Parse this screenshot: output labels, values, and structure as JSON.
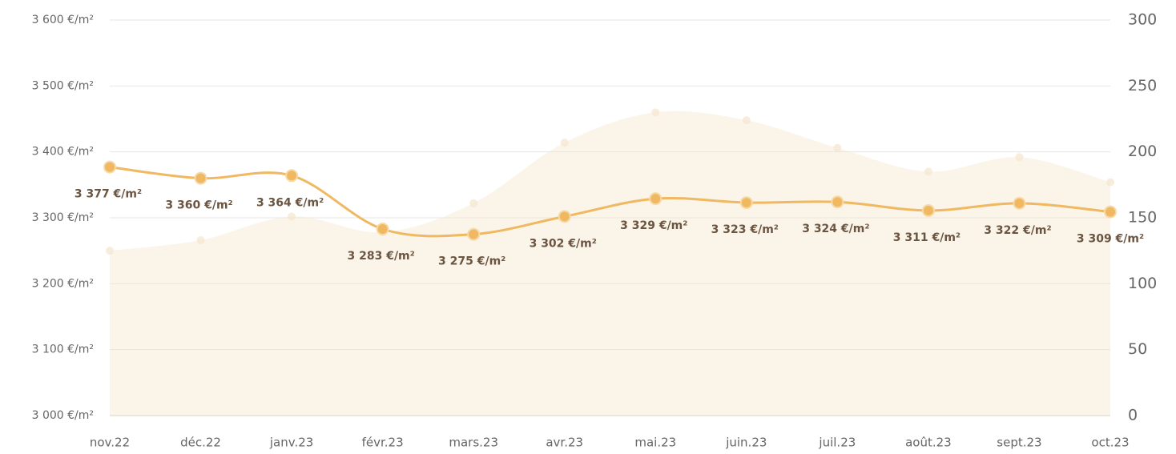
{
  "chart_data": {
    "type": "line",
    "categories": [
      "nov.22",
      "déc.22",
      "janv.23",
      "févr.23",
      "mars.23",
      "avr.23",
      "mai.23",
      "juin.23",
      "juil.23",
      "août.23",
      "sept.23",
      "oct.23"
    ],
    "series": [
      {
        "color": "#f5e6cf",
        "type": "area",
        "axis": "y2",
        "values": [
          125,
          133,
          151,
          139,
          161,
          207,
          230,
          224,
          203,
          185,
          196,
          177
        ]
      },
      {
        "color": "#f0b860",
        "type": "line",
        "values": [
          3377,
          3360,
          3364,
          3283,
          3275,
          3302,
          3329,
          3323,
          3324,
          3311,
          3322,
          3309
        ],
        "value_labels": [
          "3 377 €/m²",
          "3 360 €/m²",
          "3 364 €/m²",
          "3 283 €/m²",
          "3 275 €/m²",
          "3 302 €/m²",
          "3 329 €/m²",
          "3 323 €/m²",
          "3 324 €/m²",
          "3 311 €/m²",
          "3 322 €/m²",
          "3 309 €/m²"
        ]
      }
    ],
    "ylim": [
      3000,
      3600
    ],
    "yticks": [
      {
        "value": 3000,
        "label": "3 000 €/m²"
      },
      {
        "value": 3100,
        "label": "3 100 €/m²"
      },
      {
        "value": 3200,
        "label": "3 200 €/m²"
      },
      {
        "value": 3300,
        "label": "3 300 €/m²"
      },
      {
        "value": 3400,
        "label": "3 400 €/m²"
      },
      {
        "value": 3500,
        "label": "3 500 €/m²"
      },
      {
        "value": 3600,
        "label": "3 600 €/m²"
      }
    ],
    "y2lim": [
      0,
      300
    ],
    "y2ticks": [
      0,
      50,
      100,
      150,
      200,
      250,
      300
    ],
    "grid": true
  }
}
